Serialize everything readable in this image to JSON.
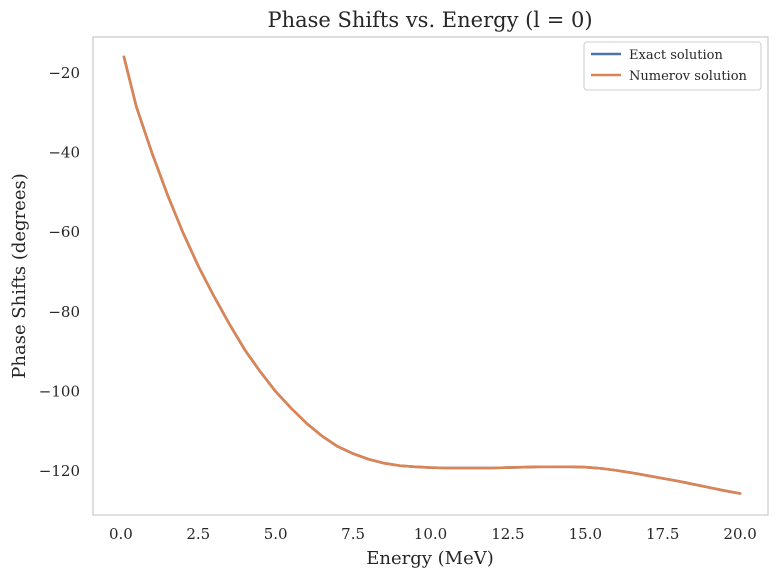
{
  "chart_data": {
    "type": "line",
    "title": "Phase Shifts vs. Energy (l = 0)",
    "xlabel": "Energy (MeV)",
    "ylabel": "Phase Shifts (degrees)",
    "xlim": [
      -0.9,
      20.9
    ],
    "ylim": [
      -131,
      -11
    ],
    "xticks": [
      0.0,
      2.5,
      5.0,
      7.5,
      10.0,
      12.5,
      15.0,
      17.5,
      20.0
    ],
    "xtick_labels": [
      "0.0",
      "2.5",
      "5.0",
      "7.5",
      "10.0",
      "12.5",
      "15.0",
      "17.5",
      "20.0"
    ],
    "yticks": [
      -20,
      -40,
      -60,
      -80,
      -100,
      -120
    ],
    "ytick_labels": [
      "−20",
      "−40",
      "−60",
      "−80",
      "−100",
      "−120"
    ],
    "grid": false,
    "legend_position": "top-right",
    "x": [
      0.1,
      0.5,
      1.0,
      1.5,
      2.0,
      2.5,
      3.0,
      3.5,
      4.0,
      4.5,
      5.0,
      5.5,
      6.0,
      6.5,
      7.0,
      7.5,
      8.0,
      8.5,
      9.0,
      9.5,
      10.0,
      10.5,
      11.0,
      11.5,
      12.0,
      12.5,
      13.0,
      13.5,
      14.0,
      14.5,
      15.0,
      15.5,
      16.0,
      16.5,
      17.0,
      17.5,
      18.0,
      18.5,
      19.0,
      19.5,
      20.0
    ],
    "series": [
      {
        "name": "Exact solution",
        "color": "#4c72b0",
        "values": [
          -16,
          -28.5,
          -40,
          -50.5,
          -60,
          -68.5,
          -76,
          -83,
          -89.5,
          -95,
          -100,
          -104.2,
          -108,
          -111.2,
          -113.8,
          -115.6,
          -117,
          -118,
          -118.6,
          -118.9,
          -119.1,
          -119.2,
          -119.2,
          -119.2,
          -119.2,
          -119.1,
          -119,
          -118.9,
          -118.9,
          -118.9,
          -119,
          -119.3,
          -119.8,
          -120.4,
          -121.1,
          -121.8,
          -122.5,
          -123.3,
          -124.1,
          -124.9,
          -125.6
        ]
      },
      {
        "name": "Numerov solution",
        "color": "#dd8452",
        "values": [
          -16,
          -28.5,
          -40,
          -50.5,
          -60,
          -68.5,
          -76,
          -83,
          -89.5,
          -95,
          -100,
          -104.2,
          -108,
          -111.2,
          -113.8,
          -115.6,
          -117,
          -118,
          -118.6,
          -118.9,
          -119.1,
          -119.2,
          -119.2,
          -119.2,
          -119.2,
          -119.1,
          -119,
          -118.9,
          -118.9,
          -118.9,
          -119,
          -119.3,
          -119.8,
          -120.4,
          -121.1,
          -121.8,
          -122.5,
          -123.3,
          -124.1,
          -124.9,
          -125.6
        ]
      }
    ]
  }
}
